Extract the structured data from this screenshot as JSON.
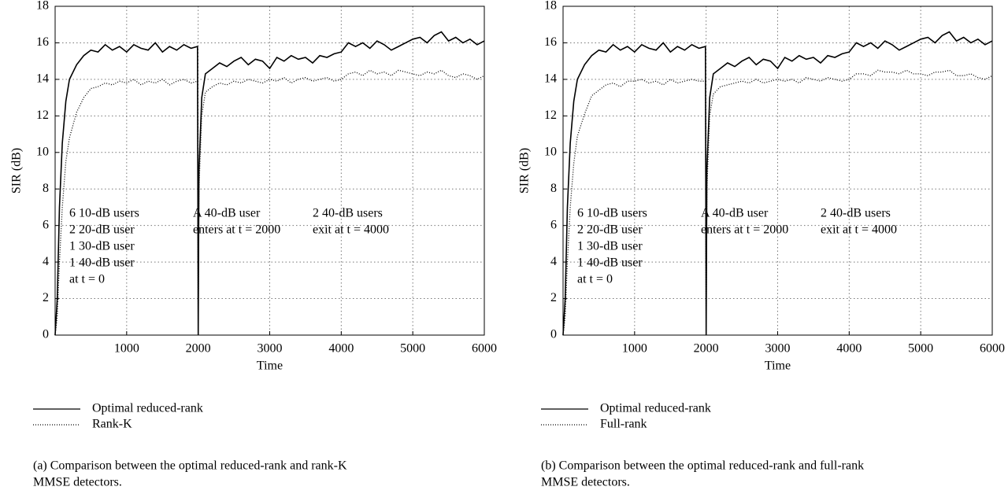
{
  "chart_data": [
    {
      "type": "line",
      "xlabel": "Time",
      "ylabel": "SIR (dB)",
      "x": [
        0,
        30,
        60,
        100,
        150,
        200,
        300,
        400,
        500,
        600,
        700,
        800,
        900,
        1000,
        1100,
        1200,
        1300,
        1400,
        1500,
        1600,
        1700,
        1800,
        1900,
        1990,
        2000,
        2010,
        2050,
        2100,
        2200,
        2300,
        2400,
        2500,
        2600,
        2700,
        2800,
        2900,
        3000,
        3100,
        3200,
        3300,
        3400,
        3500,
        3600,
        3700,
        3800,
        3900,
        4000,
        4100,
        4200,
        4300,
        4400,
        4500,
        4600,
        4700,
        4800,
        4900,
        5000,
        5100,
        5200,
        5300,
        5400,
        5500,
        5600,
        5700,
        5800,
        5900,
        6000
      ],
      "series": [
        {
          "name": "Optimal reduced-rank",
          "color": "#000000",
          "dash": "solid",
          "values": [
            0,
            2,
            7,
            10.5,
            12.8,
            14,
            14.8,
            15.3,
            15.6,
            15.5,
            15.9,
            15.6,
            15.8,
            15.5,
            15.9,
            15.7,
            15.6,
            16.0,
            15.5,
            15.8,
            15.6,
            15.9,
            15.7,
            15.8,
            0,
            9,
            13,
            14.3,
            14.6,
            14.9,
            14.7,
            15.0,
            15.2,
            14.8,
            15.1,
            15.0,
            14.6,
            15.2,
            15.0,
            15.3,
            15.1,
            15.2,
            14.9,
            15.3,
            15.2,
            15.4,
            15.5,
            16.0,
            15.8,
            16.0,
            15.7,
            16.1,
            15.9,
            15.6,
            15.8,
            16.0,
            16.2,
            16.3,
            16.0,
            16.4,
            16.6,
            16.1,
            16.3,
            16.0,
            16.2,
            15.9,
            16.1
          ]
        },
        {
          "name": "Rank-K",
          "color": "#000000",
          "dash": "dotted",
          "values": [
            0,
            1,
            4,
            7,
            9.5,
            10.8,
            12.2,
            13.0,
            13.5,
            13.6,
            13.8,
            13.7,
            13.9,
            13.8,
            14.0,
            13.7,
            13.9,
            13.8,
            14.0,
            13.7,
            13.9,
            14.0,
            13.8,
            13.9,
            0,
            8,
            12,
            13.3,
            13.6,
            13.8,
            13.7,
            13.9,
            13.8,
            14.0,
            13.9,
            13.8,
            14.0,
            13.9,
            14.1,
            13.8,
            14.0,
            14.1,
            13.9,
            14.0,
            14.1,
            13.9,
            14.0,
            14.3,
            14.4,
            14.2,
            14.5,
            14.3,
            14.4,
            14.2,
            14.5,
            14.4,
            14.3,
            14.2,
            14.4,
            14.3,
            14.5,
            14.2,
            14.1,
            14.3,
            14.2,
            14.0,
            14.2
          ]
        }
      ],
      "xlim": [
        0,
        6000
      ],
      "ylim": [
        0,
        18
      ],
      "xticks": [
        1000,
        2000,
        3000,
        4000,
        5000,
        6000
      ],
      "yticks": [
        0,
        2,
        4,
        6,
        8,
        10,
        12,
        14,
        16,
        18
      ],
      "grid": true,
      "annotations": [
        [
          "6 10-dB users",
          "2 20-dB user",
          "1 30-dB user",
          "1 40-dB user",
          "at t = 0"
        ],
        [
          "A 40-dB user",
          "enters at t = 2000"
        ],
        [
          "2 40-dB users",
          "exit at t = 4000"
        ]
      ],
      "caption": [
        "(a) Comparison between the optimal reduced-rank and rank-K",
        "MMSE detectors."
      ]
    },
    {
      "type": "line",
      "xlabel": "Time",
      "ylabel": "SIR (dB)",
      "x": [
        0,
        30,
        60,
        100,
        150,
        200,
        300,
        400,
        500,
        600,
        700,
        800,
        900,
        1000,
        1100,
        1200,
        1300,
        1400,
        1500,
        1600,
        1700,
        1800,
        1900,
        1990,
        2000,
        2010,
        2050,
        2100,
        2200,
        2300,
        2400,
        2500,
        2600,
        2700,
        2800,
        2900,
        3000,
        3100,
        3200,
        3300,
        3400,
        3500,
        3600,
        3700,
        3800,
        3900,
        4000,
        4100,
        4200,
        4300,
        4400,
        4500,
        4600,
        4700,
        4800,
        4900,
        5000,
        5100,
        5200,
        5300,
        5400,
        5500,
        5600,
        5700,
        5800,
        5900,
        6000
      ],
      "series": [
        {
          "name": "Optimal reduced-rank",
          "color": "#000000",
          "dash": "solid",
          "values": [
            0,
            2,
            7,
            10.5,
            12.8,
            14,
            14.8,
            15.3,
            15.6,
            15.5,
            15.9,
            15.6,
            15.8,
            15.5,
            15.9,
            15.7,
            15.6,
            16.0,
            15.5,
            15.8,
            15.6,
            15.9,
            15.7,
            15.8,
            0,
            9,
            13,
            14.3,
            14.6,
            14.9,
            14.7,
            15.0,
            15.2,
            14.8,
            15.1,
            15.0,
            14.6,
            15.2,
            15.0,
            15.3,
            15.1,
            15.2,
            14.9,
            15.3,
            15.2,
            15.4,
            15.5,
            16.0,
            15.8,
            16.0,
            15.7,
            16.1,
            15.9,
            15.6,
            15.8,
            16.0,
            16.2,
            16.3,
            16.0,
            16.4,
            16.6,
            16.1,
            16.3,
            16.0,
            16.2,
            15.9,
            16.1
          ]
        },
        {
          "name": "Full-rank",
          "color": "#000000",
          "dash": "dotted",
          "values": [
            0,
            1,
            4,
            7,
            9.4,
            10.9,
            12.1,
            13.1,
            13.4,
            13.7,
            13.8,
            13.6,
            13.9,
            13.9,
            14.0,
            13.8,
            13.9,
            13.7,
            14.0,
            13.8,
            13.9,
            14.0,
            13.9,
            13.9,
            0,
            8,
            12,
            13.2,
            13.6,
            13.7,
            13.8,
            13.9,
            13.8,
            14.0,
            13.8,
            13.9,
            14.0,
            13.9,
            14.0,
            13.8,
            14.1,
            14.0,
            13.9,
            14.1,
            14.0,
            13.9,
            14.0,
            14.3,
            14.3,
            14.2,
            14.5,
            14.4,
            14.4,
            14.3,
            14.5,
            14.3,
            14.3,
            14.2,
            14.4,
            14.4,
            14.5,
            14.2,
            14.2,
            14.3,
            14.1,
            14.0,
            14.2
          ]
        }
      ],
      "xlim": [
        0,
        6000
      ],
      "ylim": [
        0,
        18
      ],
      "xticks": [
        1000,
        2000,
        3000,
        4000,
        5000,
        6000
      ],
      "yticks": [
        0,
        2,
        4,
        6,
        8,
        10,
        12,
        14,
        16,
        18
      ],
      "grid": true,
      "annotations": [
        [
          "6 10-dB users",
          "2 20-dB user",
          "1 30-dB user",
          "1 40-dB user",
          "at t = 0"
        ],
        [
          "A 40-dB user",
          "enters at t = 2000"
        ],
        [
          "2 40-dB users",
          "exit at t = 4000"
        ]
      ],
      "caption": [
        "(b) Comparison between the optimal reduced-rank and full-rank",
        "MMSE detectors."
      ]
    }
  ]
}
